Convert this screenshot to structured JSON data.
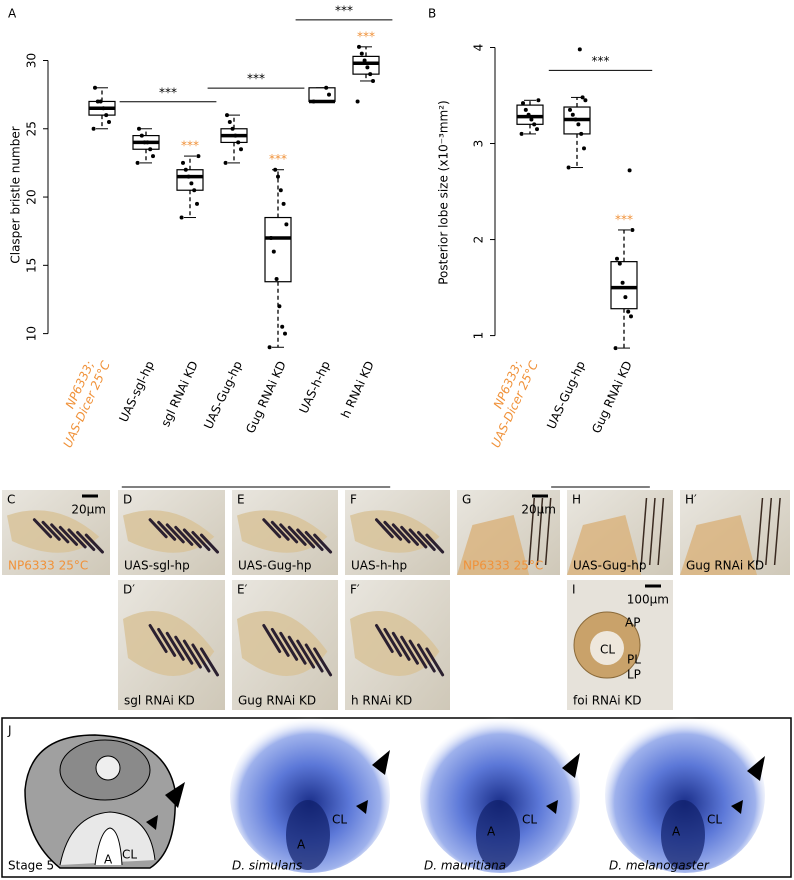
{
  "chart_data": [
    {
      "type": "box",
      "label": "A",
      "ylabel": "Clasper bristle number",
      "categories": [
        [
          "NP6333;",
          "UAS-Dicer 25°C"
        ],
        "UAS-sgl-hp",
        "sgl RNAi KD",
        "UAS-Gug-hp",
        "Gug RNAi KD",
        "UAS-h-hp",
        "h RNAi KD"
      ],
      "category_colors": [
        "#f0923a",
        "#000000",
        "#000000",
        "#000000",
        "#000000",
        "#000000",
        "#000000"
      ],
      "ylim": [
        8.8,
        31.5
      ],
      "yticks": [
        10,
        15,
        20,
        25,
        30
      ],
      "boxes": [
        {
          "min": 25,
          "q1": 26,
          "median": 26.5,
          "q3": 27,
          "max": 28,
          "points": [
            25,
            25.5,
            26,
            26.5,
            27,
            27,
            28
          ]
        },
        {
          "min": 22.5,
          "q1": 23.5,
          "median": 24,
          "q3": 24.5,
          "max": 25,
          "points": [
            22.5,
            23,
            23.5,
            24,
            24,
            24.5,
            25
          ]
        },
        {
          "min": 18.5,
          "q1": 20.5,
          "median": 21.5,
          "q3": 22,
          "max": 23,
          "points": [
            18.5,
            19.5,
            20.5,
            21,
            21.5,
            22,
            22.5,
            23
          ],
          "sig": "***"
        },
        {
          "min": 22.5,
          "q1": 24,
          "median": 24.5,
          "q3": 25,
          "max": 26,
          "points": [
            22.5,
            23.5,
            24,
            24.5,
            25,
            25.5,
            26
          ]
        },
        {
          "min": 9,
          "q1": 13.8,
          "median": 17,
          "q3": 18.5,
          "max": 22,
          "points": [
            9,
            10,
            10.5,
            12,
            14,
            16,
            17,
            18,
            19.5,
            20.5,
            21.5,
            22
          ],
          "sig": "***"
        },
        {
          "min": 27,
          "q1": 27,
          "median": 27,
          "q3": 28,
          "max": 28,
          "points": [
            27,
            27.5,
            28
          ]
        },
        {
          "min": 28.5,
          "q1": 29,
          "median": 29.8,
          "q3": 30.3,
          "max": 31,
          "points": [
            27,
            28.5,
            29,
            29.5,
            30,
            30.5,
            31
          ],
          "sig": "***"
        }
      ],
      "sig_color": "#f0923a",
      "brackets": [
        {
          "label": "***",
          "from": 1,
          "to": 2
        },
        {
          "label": "***",
          "from": 3,
          "to": 4
        },
        {
          "label": "***",
          "from": 5,
          "to": 6
        }
      ],
      "groups": [
        {
          "label": "C0",
          "from": 1,
          "to": 2
        },
        {
          "label": "C1",
          "from": 3,
          "to": 6
        }
      ]
    },
    {
      "type": "box",
      "label": "B",
      "ylabel": "Posterior lobe size (x10⁻³mm²)",
      "categories": [
        [
          "NP6333;",
          "UAS-Dicer 25°C"
        ],
        "UAS-Gug-hp",
        "Gug RNAi KD"
      ],
      "category_colors": [
        "#f0923a",
        "#000000",
        "#000000"
      ],
      "ylim": [
        0.85,
        4.13
      ],
      "yticks": [
        1,
        2,
        3,
        4
      ],
      "boxes": [
        {
          "min": 3.1,
          "q1": 3.2,
          "median": 3.28,
          "q3": 3.4,
          "max": 3.45,
          "points": [
            3.1,
            3.15,
            3.2,
            3.25,
            3.3,
            3.35,
            3.42,
            3.45
          ]
        },
        {
          "min": 2.75,
          "q1": 3.1,
          "median": 3.25,
          "q3": 3.38,
          "max": 3.48,
          "points": [
            2.75,
            2.95,
            3.1,
            3.2,
            3.25,
            3.3,
            3.35,
            3.45,
            3.48,
            3.98
          ]
        },
        {
          "min": 0.87,
          "q1": 1.28,
          "median": 1.5,
          "q3": 1.77,
          "max": 2.1,
          "points": [
            0.87,
            1.2,
            1.25,
            1.4,
            1.55,
            1.75,
            1.8,
            2.1,
            2.72
          ],
          "sig": "***"
        }
      ],
      "sig_color": "#f0923a",
      "brackets": [
        {
          "label": "***",
          "from": 1,
          "to": 2
        }
      ],
      "groups": [
        {
          "label": "C1",
          "from": 1,
          "to": 2
        }
      ]
    }
  ],
  "panels": [
    {
      "label": "C",
      "caption": "NP6333 25°C",
      "caption_color": "#f0923a",
      "scale": "20µm"
    },
    {
      "label": "D",
      "caption": "UAS-sgl-hp",
      "caption_color": "#000000"
    },
    {
      "label": "E",
      "caption": "UAS-Gug-hp",
      "caption_color": "#000000"
    },
    {
      "label": "F",
      "caption": "UAS-h-hp",
      "caption_color": "#000000"
    },
    {
      "label": "G",
      "caption": "NP6333 25°C",
      "caption_color": "#f0923a",
      "scale": "20µm"
    },
    {
      "label": "H",
      "caption": "UAS-Gug-hp",
      "caption_color": "#000000"
    },
    {
      "label": "H′",
      "caption": "Gug  RNAi KD",
      "caption_color": "#000000"
    },
    {
      "label": "D′",
      "caption": "sgl RNAi KD",
      "caption_color": "#000000"
    },
    {
      "label": "E′",
      "caption": "Gug  RNAi KD",
      "caption_color": "#000000"
    },
    {
      "label": "F′",
      "caption": "h  RNAi KD",
      "caption_color": "#000000"
    },
    {
      "label": "I",
      "caption": "foi  RNAi KD",
      "caption_color": "#000000",
      "scale": "100µm",
      "parts": [
        "AP",
        "CL",
        "PL",
        "LP"
      ]
    }
  ],
  "stage_panel": {
    "label": "J",
    "stage": "Stage 5",
    "a": "A",
    "cl": "CL",
    "species": [
      "D. simulans",
      "D. mauritiana",
      "D. melanogaster"
    ]
  }
}
